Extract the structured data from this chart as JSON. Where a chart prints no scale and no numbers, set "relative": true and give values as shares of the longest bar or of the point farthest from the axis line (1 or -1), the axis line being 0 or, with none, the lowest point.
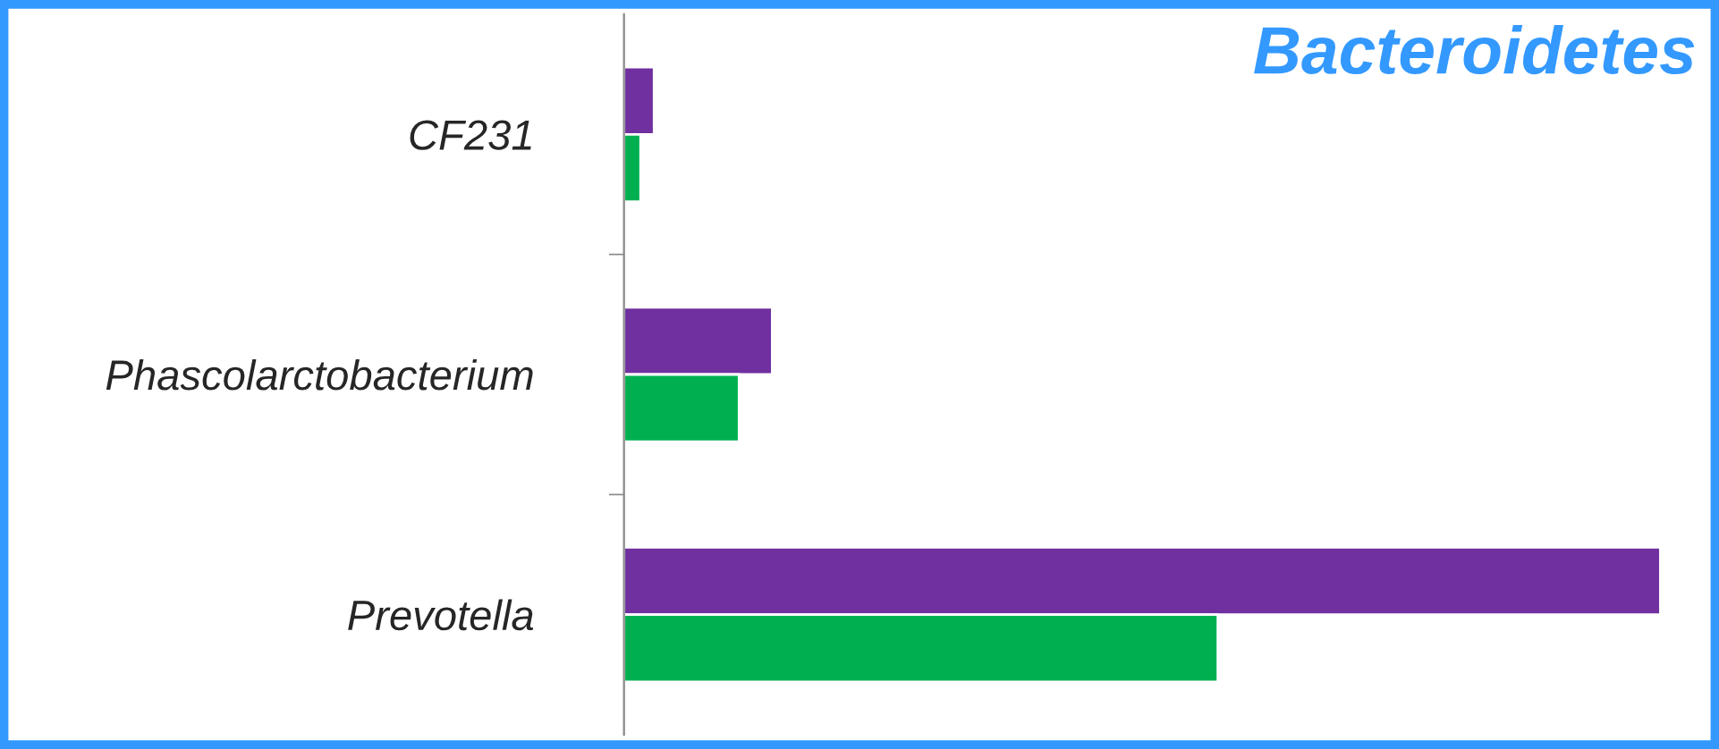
{
  "chart_data": {
    "type": "bar",
    "orientation": "horizontal",
    "relative": true,
    "title": "Bacteroidetes",
    "categories": [
      "CF231",
      "Phascolarctobacterium",
      "Prevotella"
    ],
    "series": [
      {
        "color": "#7030a0",
        "values": [
          0.029,
          0.143,
          1
        ]
      },
      {
        "color": "#00b050",
        "values": [
          0.016,
          0.111,
          0.573
        ]
      }
    ],
    "grid": false,
    "legend": false
  }
}
